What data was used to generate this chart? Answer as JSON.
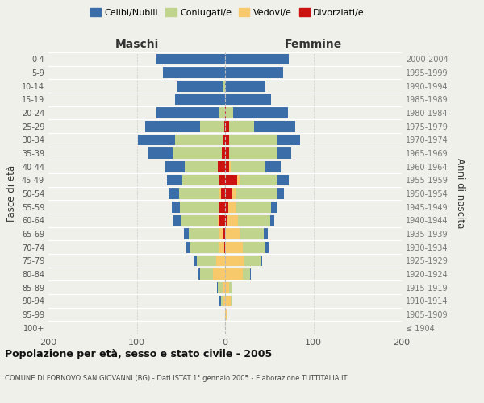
{
  "age_groups": [
    "100+",
    "95-99",
    "90-94",
    "85-89",
    "80-84",
    "75-79",
    "70-74",
    "65-69",
    "60-64",
    "55-59",
    "50-54",
    "45-49",
    "40-44",
    "35-39",
    "30-34",
    "25-29",
    "20-24",
    "15-19",
    "10-14",
    "5-9",
    "0-4"
  ],
  "birth_years": [
    "≤ 1904",
    "1905-1909",
    "1910-1914",
    "1915-1919",
    "1920-1924",
    "1925-1929",
    "1930-1934",
    "1935-1939",
    "1940-1944",
    "1945-1949",
    "1950-1954",
    "1955-1959",
    "1960-1964",
    "1965-1969",
    "1970-1974",
    "1975-1979",
    "1980-1984",
    "1985-1989",
    "1990-1994",
    "1995-1999",
    "2000-2004"
  ],
  "maschi": {
    "celibi": [
      0,
      0,
      1,
      1,
      2,
      4,
      5,
      6,
      8,
      9,
      12,
      18,
      22,
      28,
      42,
      62,
      72,
      57,
      52,
      70,
      78
    ],
    "coniugati": [
      0,
      0,
      3,
      5,
      14,
      22,
      32,
      35,
      42,
      44,
      46,
      42,
      38,
      55,
      55,
      27,
      6,
      0,
      2,
      0,
      0
    ],
    "vedovi": [
      0,
      0,
      2,
      3,
      14,
      10,
      6,
      4,
      2,
      1,
      1,
      0,
      0,
      0,
      0,
      0,
      0,
      0,
      0,
      0,
      0
    ],
    "divorziati": [
      0,
      0,
      0,
      0,
      0,
      0,
      1,
      2,
      6,
      6,
      5,
      6,
      8,
      4,
      2,
      1,
      0,
      0,
      0,
      0,
      0
    ]
  },
  "femmine": {
    "nubili": [
      0,
      0,
      0,
      0,
      1,
      2,
      3,
      4,
      5,
      6,
      8,
      14,
      17,
      16,
      26,
      46,
      62,
      52,
      46,
      66,
      72
    ],
    "coniugate": [
      0,
      0,
      1,
      2,
      8,
      18,
      26,
      28,
      36,
      40,
      46,
      42,
      40,
      54,
      54,
      28,
      8,
      0,
      0,
      0,
      0
    ],
    "vedove": [
      0,
      2,
      6,
      5,
      20,
      22,
      20,
      16,
      12,
      8,
      5,
      2,
      1,
      0,
      0,
      0,
      0,
      0,
      0,
      0,
      0
    ],
    "divorziate": [
      0,
      0,
      0,
      0,
      0,
      0,
      0,
      0,
      3,
      4,
      8,
      14,
      5,
      5,
      5,
      5,
      1,
      0,
      0,
      0,
      0
    ]
  },
  "colors": {
    "celibi": "#3b6ea8",
    "coniugati": "#c0d48e",
    "vedovi": "#f7c96a",
    "divorziati": "#cc1111"
  },
  "xlim": 200,
  "title": "Popolazione per età, sesso e stato civile - 2005",
  "subtitle": "COMUNE DI FORNOVO SAN GIOVANNI (BG) - Dati ISTAT 1° gennaio 2005 - Elaborazione TUTTITALIA.IT",
  "ylabel_left": "Fasce di età",
  "ylabel_right": "Anni di nascita",
  "xlabel_left": "Maschi",
  "xlabel_right": "Femmine",
  "legend_labels": [
    "Celibi/Nubili",
    "Coniugati/e",
    "Vedovi/e",
    "Divorziati/e"
  ],
  "bg_color": "#f0f0eb"
}
